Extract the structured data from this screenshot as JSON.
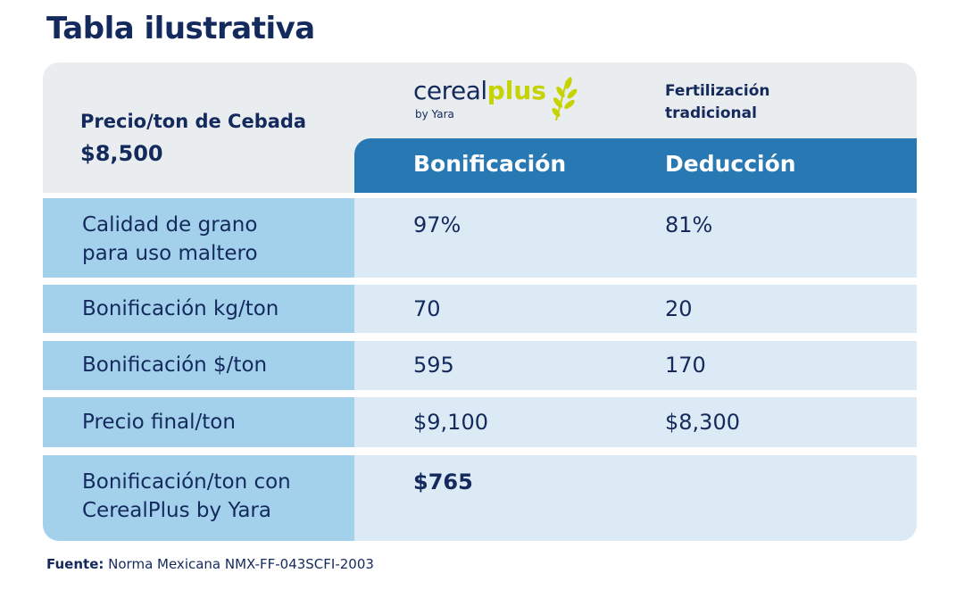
{
  "title": "Tabla ilustrativa",
  "header": {
    "price_label": "Precio/ton de Cebada",
    "price_value": "$8,500",
    "logo": {
      "word1": "cereal",
      "word2": "plus",
      "by": "by Yara"
    },
    "traditional": [
      "Fertilización",
      "tradicional"
    ],
    "col_a": "Bonificación",
    "col_b": "Deducción"
  },
  "rows": [
    {
      "label": "Calidad de grano para uso maltero",
      "a": "97%",
      "b": "81%"
    },
    {
      "label": "Bonificación kg/ton",
      "a": "70",
      "b": "20"
    },
    {
      "label": "Bonificación $/ton",
      "a": "595",
      "b": "170"
    },
    {
      "label": "Precio final/ton",
      "a": "$9,100",
      "b": "$8,300"
    },
    {
      "label": "Bonificación/ton con CerealPlus by Yara",
      "a": "$765",
      "b": ""
    }
  ],
  "source": {
    "label": "Fuente:",
    "text": "Norma Mexicana NMX-FF-043SCFI-2003"
  },
  "colors": {
    "navy": "#14295c",
    "blue": "#2878b4",
    "lime": "#c5d300",
    "left_cell": "#a3d1eb",
    "right_cell": "#dceaf5"
  }
}
